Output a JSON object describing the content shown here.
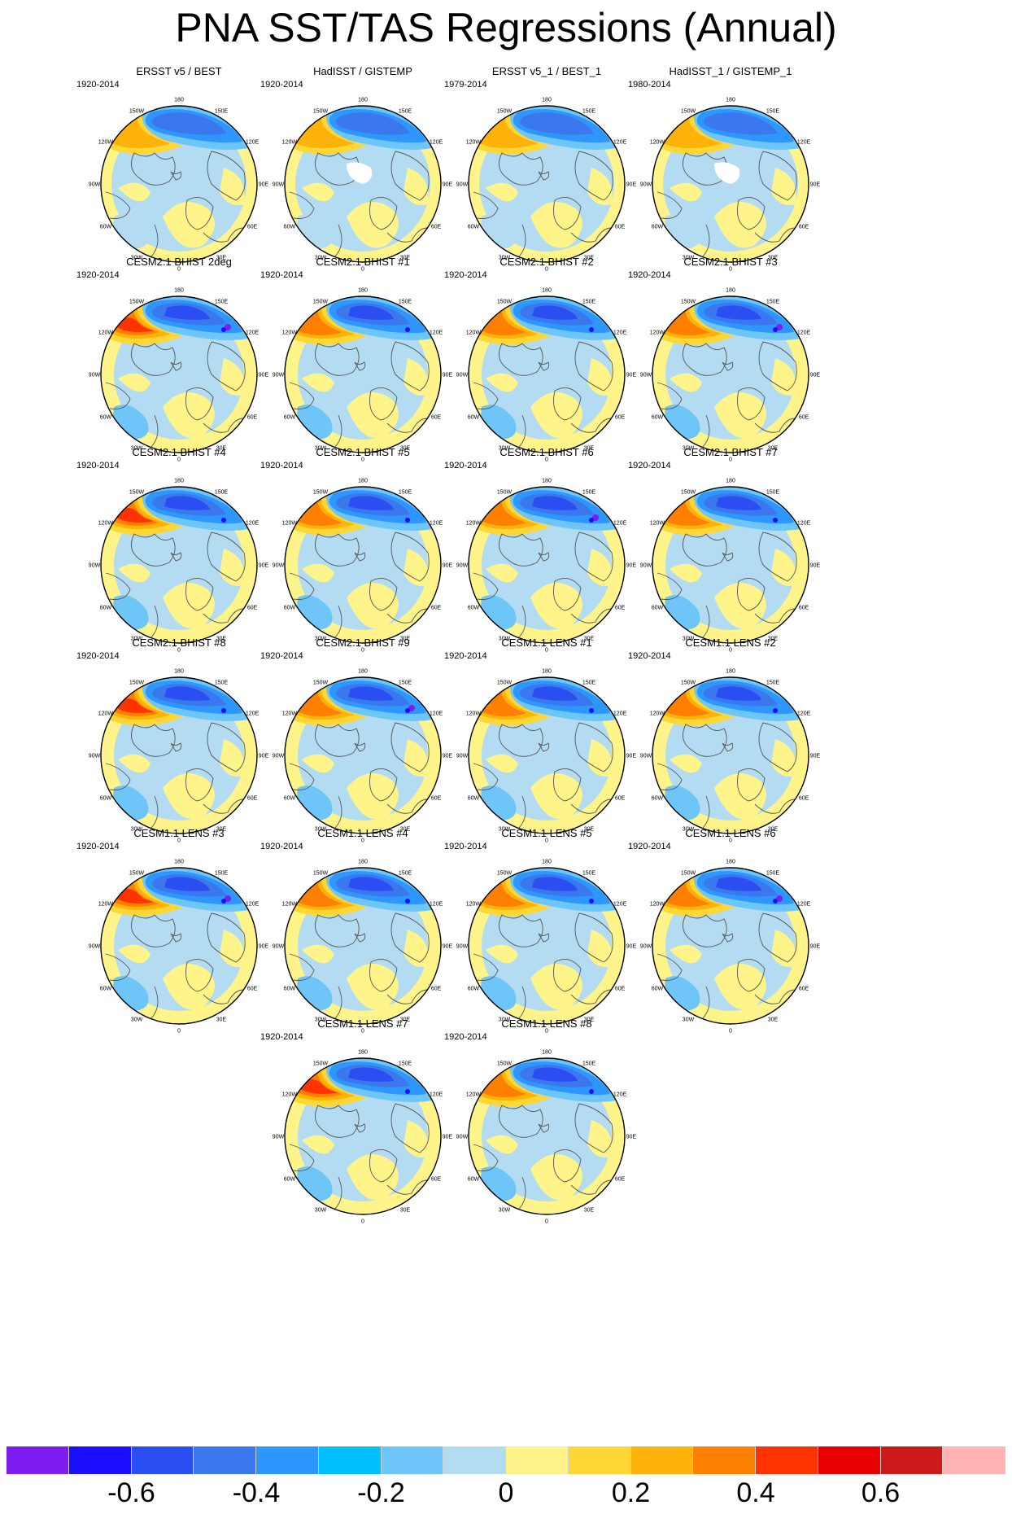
{
  "title": "PNA SST/TAS Regressions (Annual)",
  "map": {
    "projection": "polar-stereographic-north",
    "lon_labels": [
      "180",
      "150E",
      "120E",
      "90E",
      "60E",
      "30E",
      "0",
      "30W",
      "60W",
      "90W",
      "120W",
      "150W"
    ]
  },
  "panels": [
    {
      "title": "ERSST v5 / BEST",
      "period": "1920-2014"
    },
    {
      "title": "HadISST / GISTEMP",
      "period": "1920-2014"
    },
    {
      "title": "ERSST v5_1 / BEST_1",
      "period": "1979-2014"
    },
    {
      "title": "HadISST_1 / GISTEMP_1",
      "period": "1980-2014"
    },
    {
      "title": "CESM2.1 BHIST 2deg",
      "period": "1920-2014"
    },
    {
      "title": "CESM2.1 BHIST #1",
      "period": "1920-2014"
    },
    {
      "title": "CESM2.1 BHIST #2",
      "period": "1920-2014"
    },
    {
      "title": "CESM2.1 BHIST #3",
      "period": "1920-2014"
    },
    {
      "title": "CESM2.1 BHIST #4",
      "period": "1920-2014"
    },
    {
      "title": "CESM2.1 BHIST #5",
      "period": "1920-2014"
    },
    {
      "title": "CESM2.1 BHIST #6",
      "period": "1920-2014"
    },
    {
      "title": "CESM2.1 BHIST #7",
      "period": "1920-2014"
    },
    {
      "title": "CESM2.1 BHIST #8",
      "period": "1920-2014"
    },
    {
      "title": "CESM2.1 BHIST #9",
      "period": "1920-2014"
    },
    {
      "title": "CESM1.1 LENS #1",
      "period": "1920-2014"
    },
    {
      "title": "CESM1.1 LENS #2",
      "period": "1920-2014"
    },
    {
      "title": "CESM1.1 LENS #3",
      "period": "1920-2014"
    },
    {
      "title": "CESM1.1 LENS #4",
      "period": "1920-2014"
    },
    {
      "title": "CESM1.1 LENS #5",
      "period": "1920-2014"
    },
    {
      "title": "CESM1.1 LENS #6",
      "period": "1920-2014"
    },
    {
      "title": "CESM1.1 LENS #7",
      "period": "1920-2014"
    },
    {
      "title": "CESM1.1 LENS #8",
      "period": "1920-2014"
    }
  ],
  "colorbar": {
    "colors": [
      "#7f1cf0",
      "#1a0fff",
      "#2a4ef2",
      "#3b78ee",
      "#2e96ff",
      "#00bfff",
      "#6ec5f7",
      "#b3dcf2",
      "#fff48a",
      "#ffd734",
      "#ffb20a",
      "#ff7f00",
      "#ff3300",
      "#e80000",
      "#cc1a1a",
      "#ffb3b3"
    ],
    "tick_labels": [
      "-0.6",
      "-0.4",
      "-0.2",
      "0",
      "0.2",
      "0.4",
      "0.6"
    ],
    "tick_boundaries": [
      2,
      4,
      6,
      8,
      10,
      12,
      14
    ]
  }
}
